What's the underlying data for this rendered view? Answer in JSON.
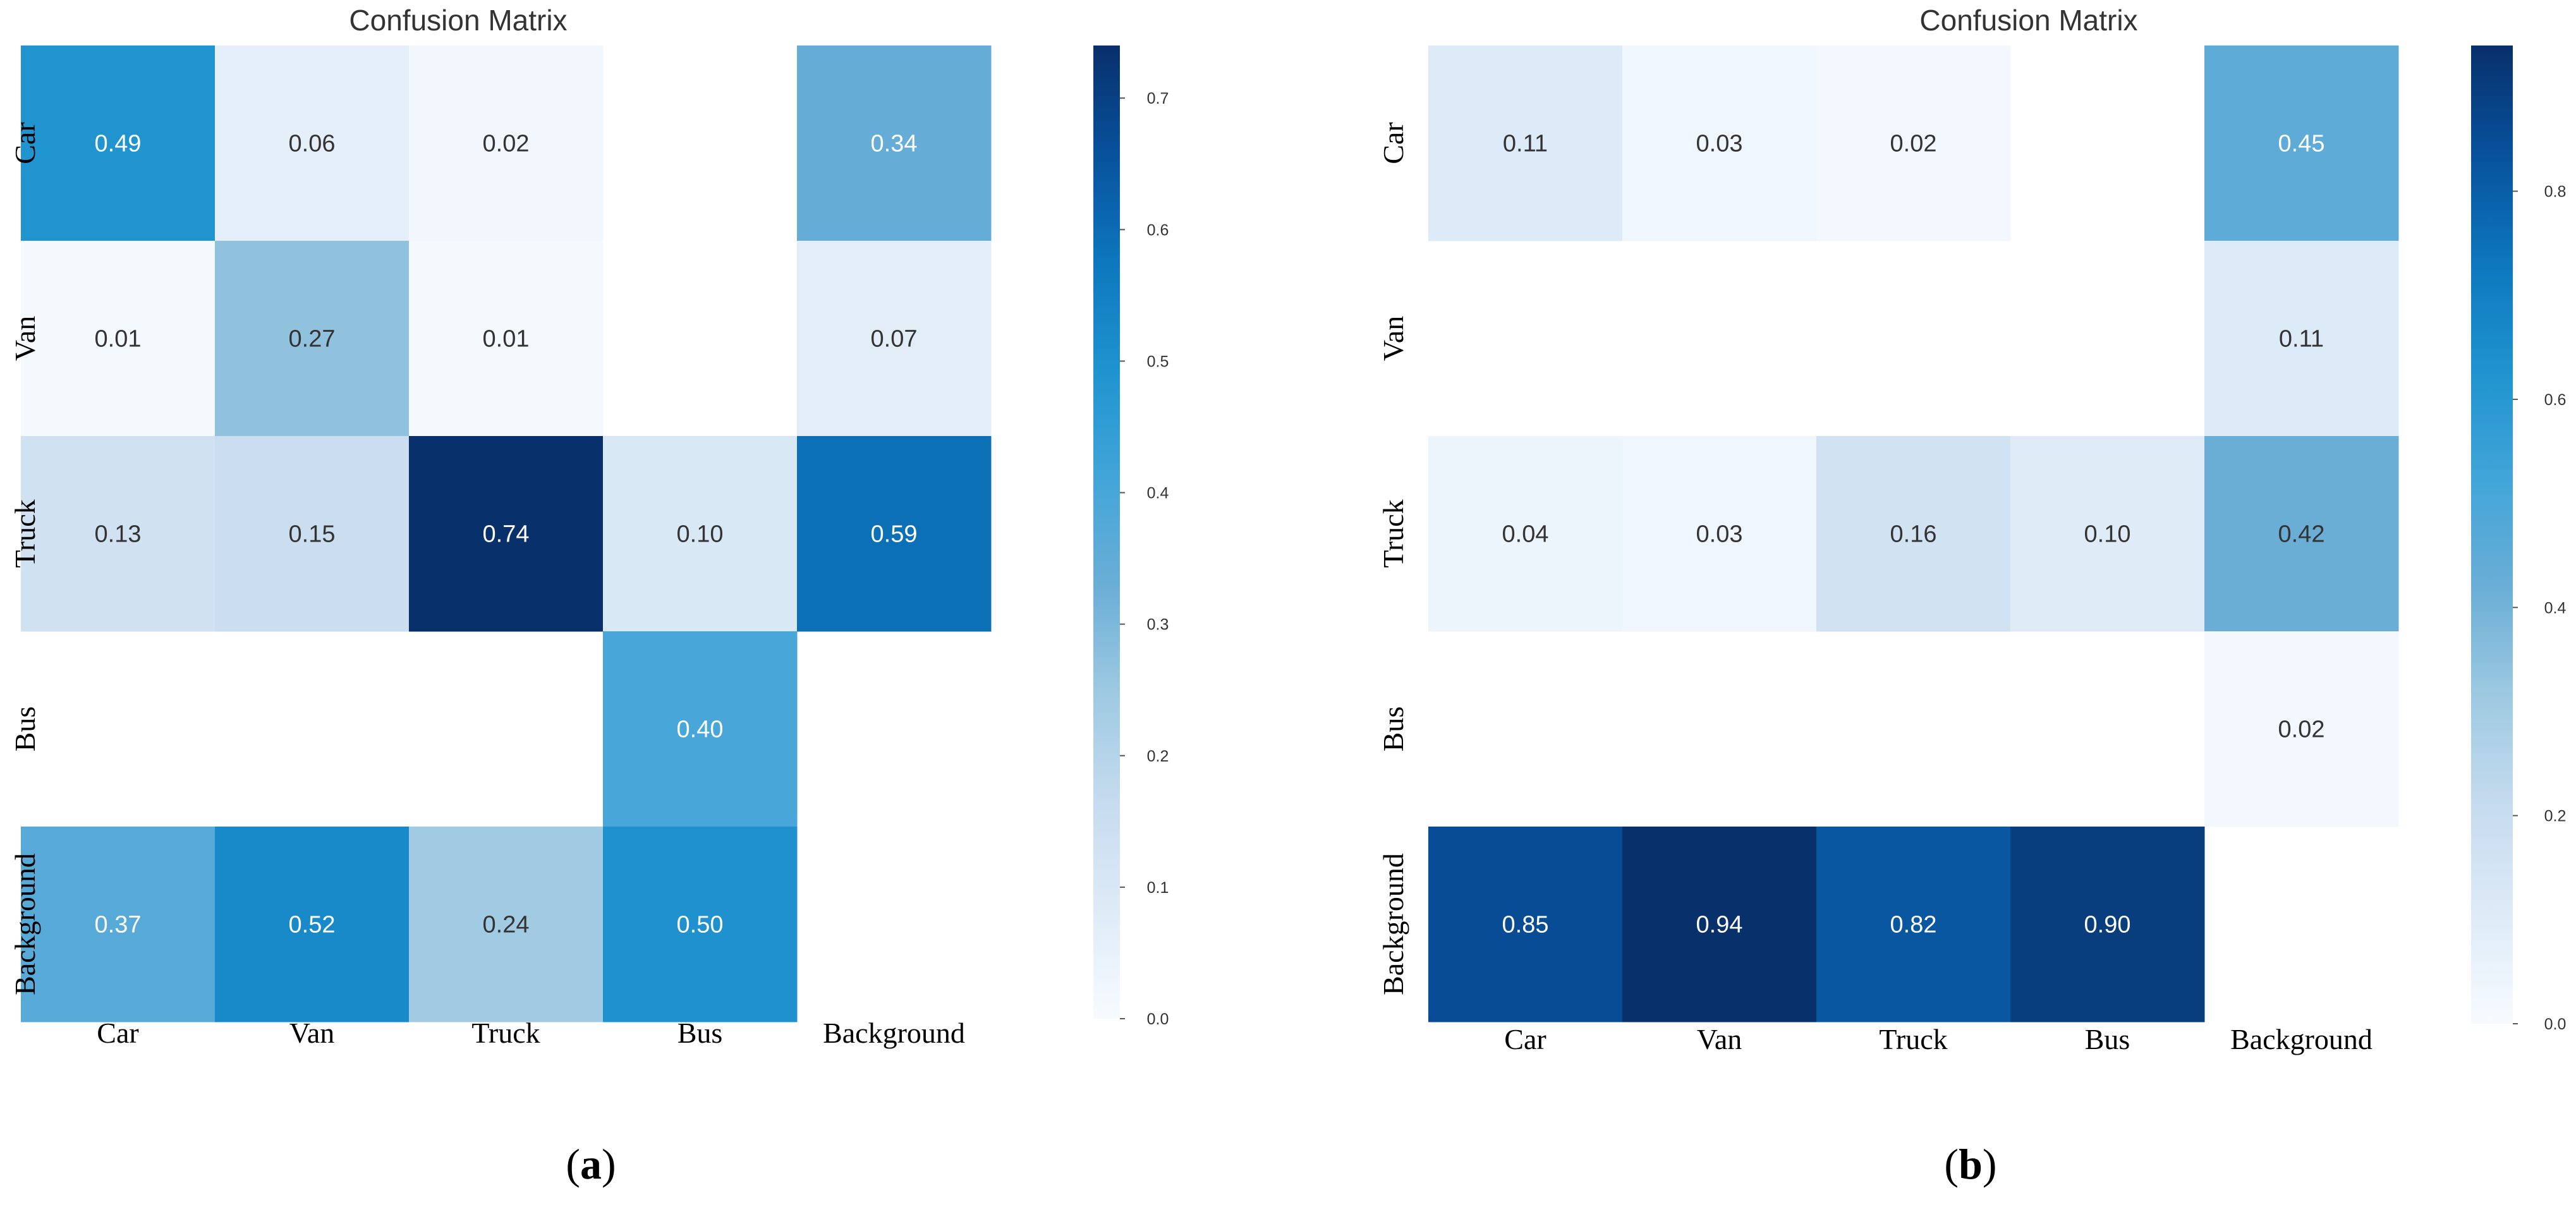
{
  "chart_data": [
    {
      "type": "heatmap",
      "panel_label": "a",
      "title": "Confusion Matrix",
      "row_labels": [
        "Car",
        "Van",
        "Truck",
        "Bus",
        "Background"
      ],
      "col_labels": [
        "Car",
        "Van",
        "Truck",
        "Bus",
        "Background"
      ],
      "values": [
        [
          0.49,
          0.06,
          0.02,
          null,
          0.34
        ],
        [
          0.01,
          0.27,
          0.01,
          null,
          0.07
        ],
        [
          0.13,
          0.15,
          0.74,
          0.1,
          0.59
        ],
        [
          null,
          null,
          null,
          0.4,
          null
        ],
        [
          0.37,
          0.52,
          0.24,
          0.5,
          null
        ]
      ],
      "value_labels": [
        [
          "0.49",
          "0.06",
          "0.02",
          "",
          "0.34"
        ],
        [
          "0.01",
          "0.27",
          "0.01",
          "",
          "0.07"
        ],
        [
          "0.13",
          "0.15",
          "0.74",
          "0.10",
          "0.59"
        ],
        [
          "",
          "",
          "",
          "0.40",
          ""
        ],
        [
          "0.37",
          "0.52",
          "0.24",
          "0.50",
          ""
        ]
      ],
      "colorbar": {
        "vmin": 0.0,
        "vmax": 0.74,
        "ticks": [
          0.0,
          0.1,
          0.2,
          0.3,
          0.4,
          0.5,
          0.6,
          0.7
        ],
        "tick_labels": [
          "0.0",
          "0.1",
          "0.2",
          "0.3",
          "0.4",
          "0.5",
          "0.6",
          "0.7"
        ]
      },
      "colormap": [
        "#f7fbff",
        "#deebf7",
        "#c6dbef",
        "#9ecae1",
        "#6baed6",
        "#42a5d8",
        "#1f93cf",
        "#0d77bd",
        "#08519c",
        "#08306b"
      ]
    },
    {
      "type": "heatmap",
      "panel_label": "b",
      "title": "Confusion Matrix",
      "row_labels": [
        "Car",
        "Van",
        "Truck",
        "Bus",
        "Background"
      ],
      "col_labels": [
        "Car",
        "Van",
        "Truck",
        "Bus",
        "Background"
      ],
      "values": [
        [
          0.11,
          0.03,
          0.02,
          null,
          0.45
        ],
        [
          null,
          null,
          null,
          null,
          0.11
        ],
        [
          0.04,
          0.03,
          0.16,
          0.1,
          0.42
        ],
        [
          null,
          null,
          null,
          null,
          0.02
        ],
        [
          0.85,
          0.94,
          0.82,
          0.9,
          null
        ]
      ],
      "value_labels": [
        [
          "0.11",
          "0.03",
          "0.02",
          "",
          "0.45"
        ],
        [
          "",
          "",
          "",
          "",
          "0.11"
        ],
        [
          "0.04",
          "0.03",
          "0.16",
          "0.10",
          "0.42"
        ],
        [
          "",
          "",
          "",
          "",
          "0.02"
        ],
        [
          "0.85",
          "0.94",
          "0.82",
          "0.90",
          ""
        ]
      ],
      "colorbar": {
        "vmin": 0.0,
        "vmax": 0.94,
        "ticks": [
          0.0,
          0.2,
          0.4,
          0.6,
          0.8
        ],
        "tick_labels": [
          "0.0",
          "0.2",
          "0.4",
          "0.6",
          "0.8"
        ]
      },
      "colormap": [
        "#f7fbff",
        "#deebf7",
        "#c6dbef",
        "#9ecae1",
        "#6baed6",
        "#42a5d8",
        "#1f93cf",
        "#0d77bd",
        "#08519c",
        "#08306b"
      ]
    }
  ]
}
